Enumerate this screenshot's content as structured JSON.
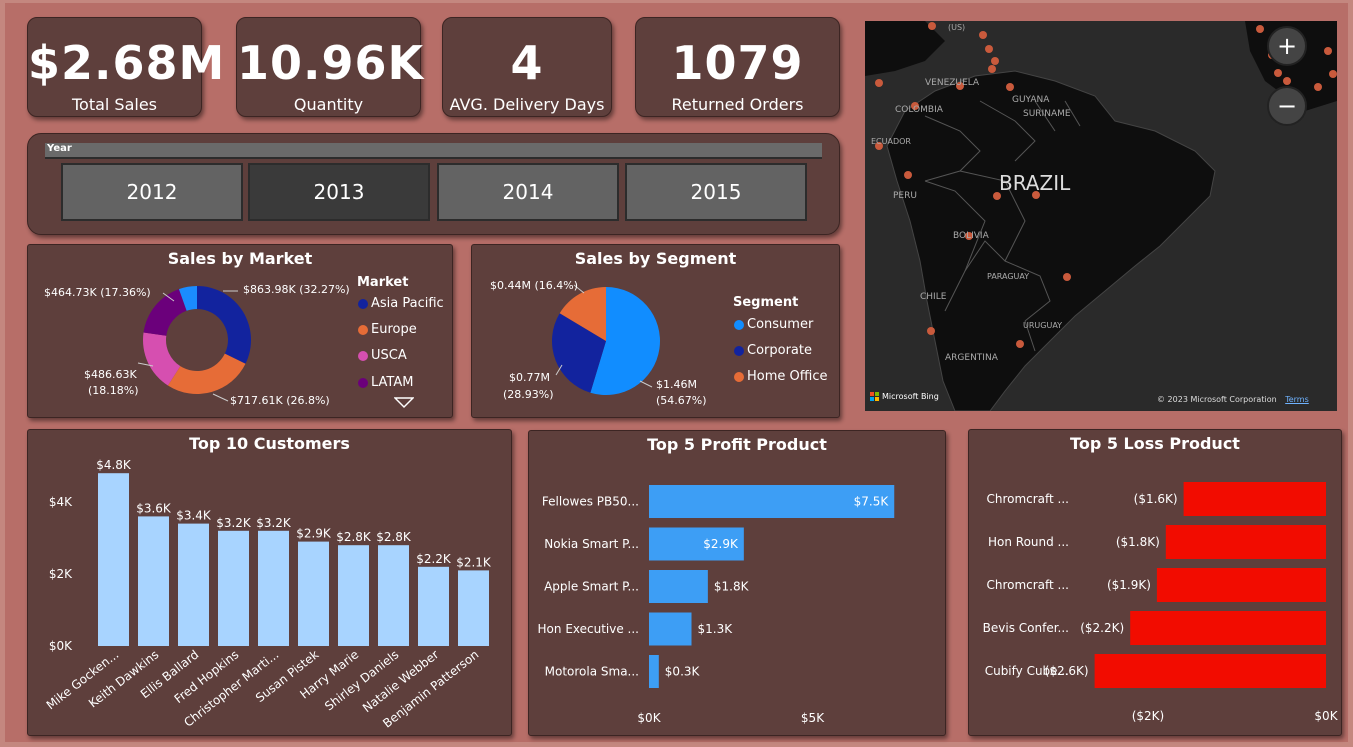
{
  "kpis": [
    {
      "value": "$2.68M",
      "label": "Total Sales"
    },
    {
      "value": "10.96K",
      "label": "Quantity"
    },
    {
      "value": "4",
      "label": "AVG. Delivery Days"
    },
    {
      "value": "1079",
      "label": "Returned Orders"
    }
  ],
  "year_slicer": {
    "title": "Year",
    "options": [
      "2012",
      "2013",
      "2014",
      "2015"
    ],
    "selected": "2013"
  },
  "sales_by_market": {
    "title": "Sales by Market",
    "legend_title": "Market",
    "slices": [
      {
        "name": "Asia Pacific",
        "value": 863.98,
        "label": "$863.98K (32.27%)",
        "color": "#12239e"
      },
      {
        "name": "Europe",
        "value": 717.61,
        "label": "$717.61K (26.8%)",
        "color": "#e66c37"
      },
      {
        "name": "USCA",
        "value": 486.63,
        "label_line1": "$486.63K",
        "label_line2": "(18.18%)",
        "color": "#d64fb0"
      },
      {
        "name": "LATAM",
        "value": 464.73,
        "label": "$464.73K (17.36%)",
        "color": "#6b007b"
      },
      {
        "name": "",
        "value": 145.5,
        "color": "#1a8cff"
      }
    ],
    "legend": [
      "Asia Pacific",
      "Europe",
      "USCA",
      "LATAM"
    ],
    "legend_colors": [
      "#12239e",
      "#e66c37",
      "#d64fb0",
      "#6b007b"
    ]
  },
  "sales_by_segment": {
    "title": "Sales by Segment",
    "legend_title": "Segment",
    "slices": [
      {
        "name": "Consumer",
        "value": 54.67,
        "label_line1": "$1.46M",
        "label_line2": "(54.67%)",
        "color": "#118dff"
      },
      {
        "name": "Corporate",
        "value": 28.93,
        "label_line1": "$0.77M",
        "label_line2": "(28.93%)",
        "color": "#12239e"
      },
      {
        "name": "Home Office",
        "value": 16.4,
        "label": "$0.44M (16.4%)",
        "color": "#e66c37"
      }
    ]
  },
  "map": {
    "labels": [
      "VENEZUELA",
      "COLOMBIA",
      "GUYANA",
      "SURINAME",
      "ECUADOR",
      "PERU",
      "BRAZIL",
      "BOLIVIA",
      "PARAGUAY",
      "CHILE",
      "ARGENTINA",
      "URUGUAY",
      "(US)"
    ],
    "bing": "Microsoft Bing",
    "copyright": "© 2023 Microsoft Corporation",
    "terms": "Terms",
    "zoom_in": "+",
    "zoom_out": "−"
  },
  "chart_data": [
    {
      "type": "bar",
      "title": "Top 10 Customers",
      "categories": [
        "Mike Gocken...",
        "Keith Dawkins",
        "Ellis Ballard",
        "Fred Hopkins",
        "Christopher Marti...",
        "Susan Pistek",
        "Harry Marie",
        "Shirley Daniels",
        "Natalie Webber",
        "Benjamin Patterson"
      ],
      "values": [
        4.8,
        3.6,
        3.4,
        3.2,
        3.2,
        2.9,
        2.8,
        2.8,
        2.2,
        2.1
      ],
      "data_labels": [
        "$4.8K",
        "$3.6K",
        "$3.4K",
        "$3.2K",
        "$3.2K",
        "$2.9K",
        "$2.8K",
        "$2.8K",
        "$2.2K",
        "$2.1K"
      ],
      "yticks": [
        "$0K",
        "$2K",
        "$4K"
      ],
      "ylim": [
        0,
        5
      ],
      "color": "#a8d4ff"
    },
    {
      "type": "bar",
      "orientation": "horizontal",
      "title": "Top 5 Profit Product",
      "categories": [
        "Fellowes PB50...",
        "Nokia Smart P...",
        "Apple Smart P...",
        "Hon Executive ...",
        "Motorola Sma..."
      ],
      "values": [
        7.5,
        2.9,
        1.8,
        1.3,
        0.3
      ],
      "data_labels": [
        "$7.5K",
        "$2.9K",
        "$1.8K",
        "$1.3K",
        "$0.3K"
      ],
      "xticks": [
        "$0K",
        "$5K"
      ],
      "xlim": [
        0,
        7.5
      ],
      "color": "#3d9ef5"
    },
    {
      "type": "bar",
      "orientation": "horizontal",
      "title": "Top 5 Loss Product",
      "categories": [
        "Chromcraft ...",
        "Hon Round ...",
        "Chromcraft ...",
        "Bevis Confer...",
        "Cubify Cube..."
      ],
      "values": [
        -1.6,
        -1.8,
        -1.9,
        -2.2,
        -2.6
      ],
      "data_labels": [
        "($1.6K)",
        "($1.8K)",
        "($1.9K)",
        "($2.2K)",
        "($2.6K)"
      ],
      "xticks": [
        "($2K)",
        "$0K"
      ],
      "xlim": [
        -2.6,
        0
      ],
      "color": "#f20c00"
    }
  ]
}
